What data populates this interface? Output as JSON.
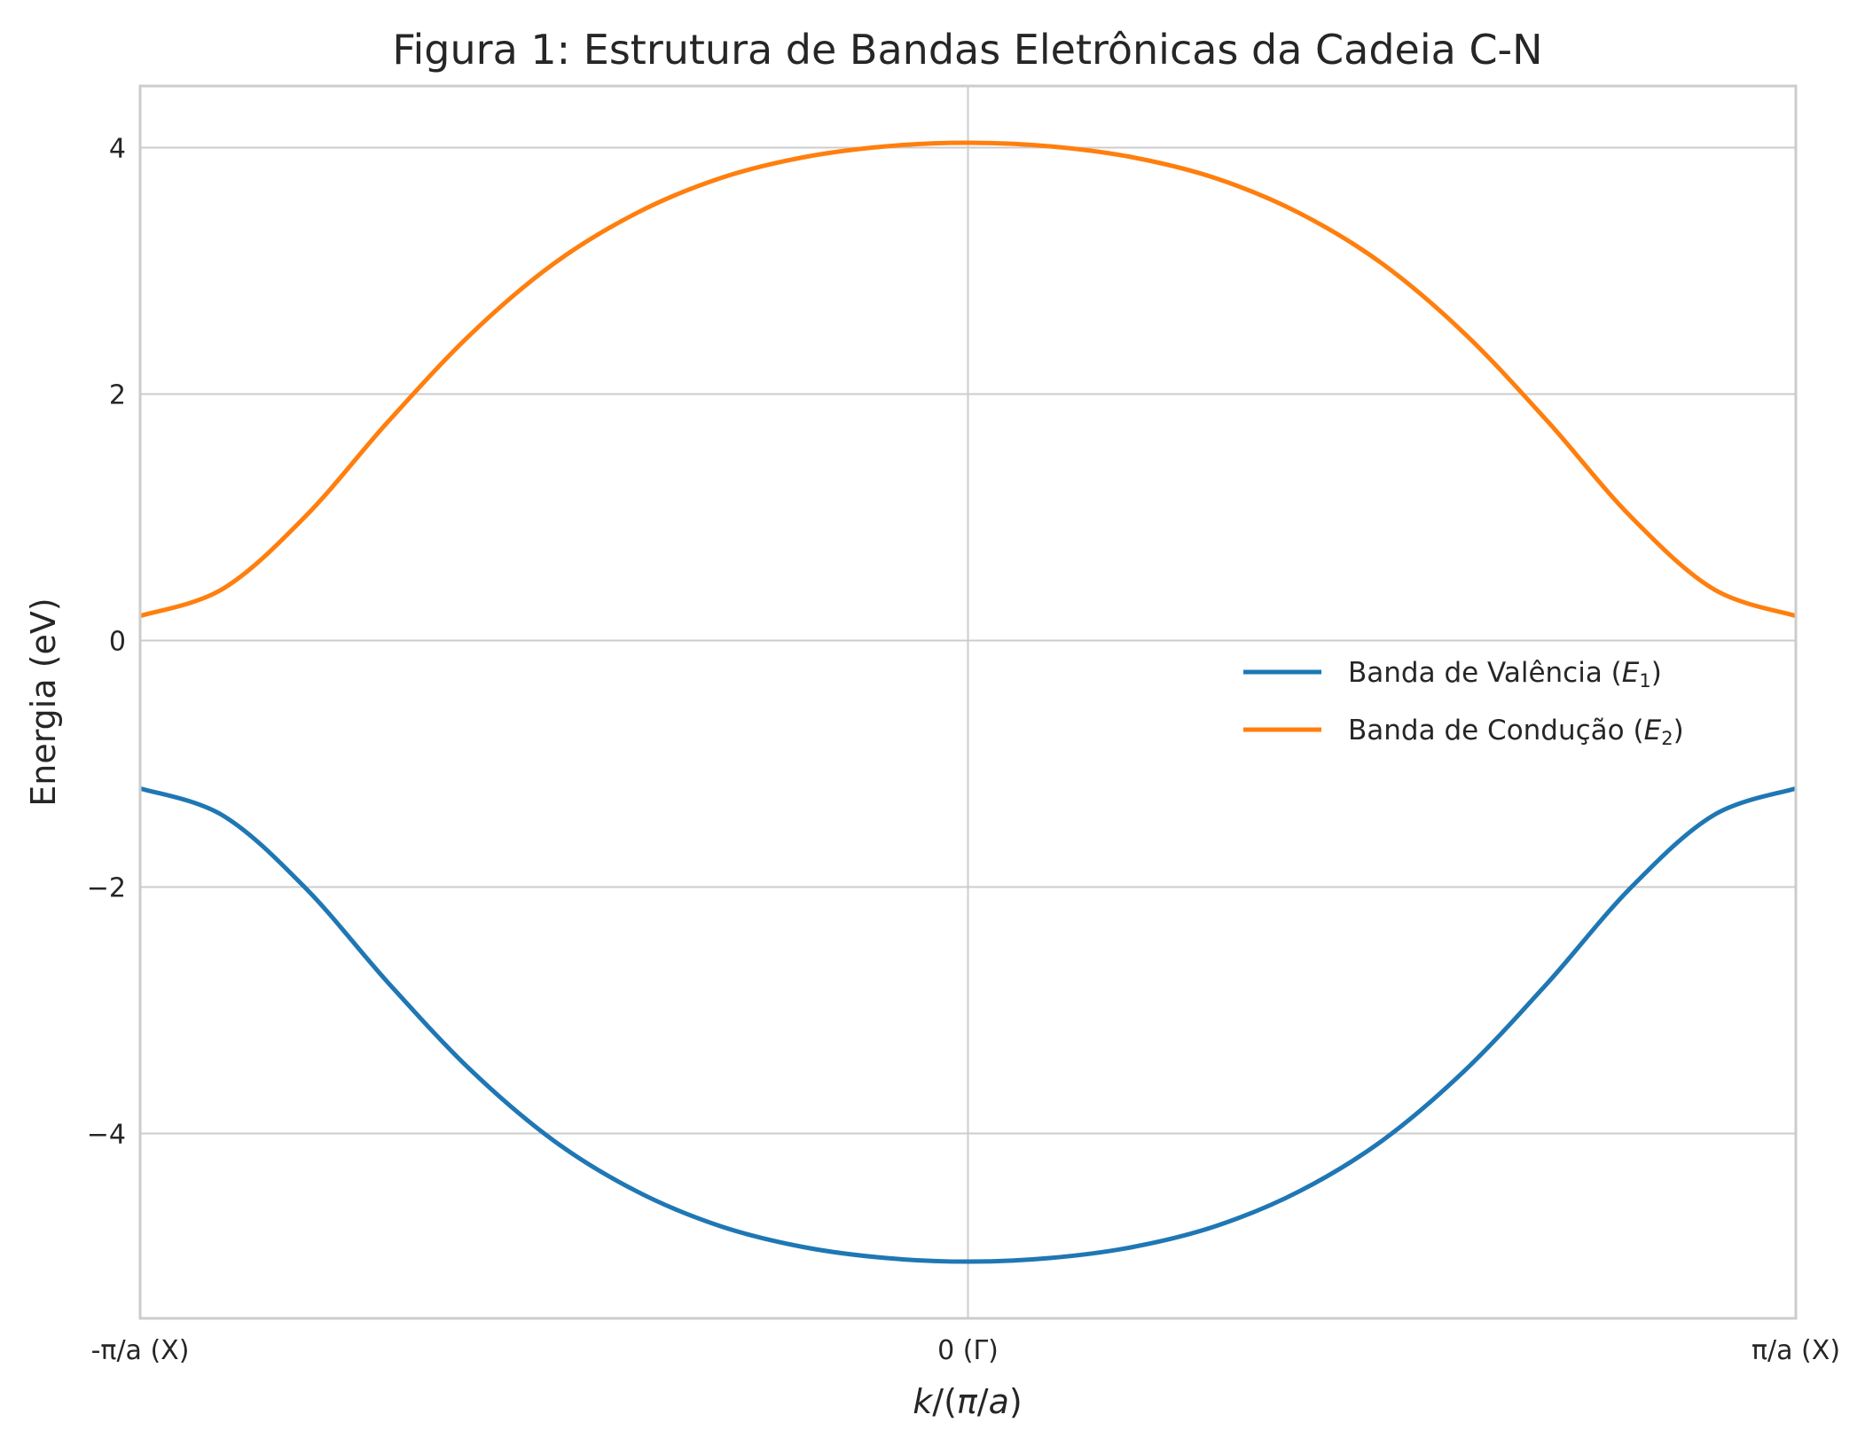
{
  "chart_data": {
    "type": "line",
    "title": "Figura 1: Estrutura de Bandas Eletrônicas da Cadeia C-N",
    "xlabel_parts": [
      "k",
      "/(",
      "π",
      "/",
      "a",
      ")"
    ],
    "ylabel": "Energia (eV)",
    "xlim": [
      -1,
      1
    ],
    "ylim": [
      -5.5,
      4.5
    ],
    "xticks": [
      {
        "value": -1,
        "label": "-π/a (X)"
      },
      {
        "value": 0,
        "label": "0 (Γ)"
      },
      {
        "value": 1,
        "label": "π/a (X)"
      }
    ],
    "yticks": [
      {
        "value": -4,
        "label": "−4"
      },
      {
        "value": -2,
        "label": "−2"
      },
      {
        "value": 0,
        "label": "0"
      },
      {
        "value": 2,
        "label": "2"
      },
      {
        "value": 4,
        "label": "4"
      }
    ],
    "grid": true,
    "legend_position": "center-right",
    "series": [
      {
        "name_prefix": "Banda de Valência (",
        "name_var": "E",
        "name_sub": "1",
        "name_suffix": ")",
        "color": "#1f77b4",
        "x": [
          -1,
          -0.9,
          -0.8,
          -0.7,
          -0.6,
          -0.5,
          -0.4,
          -0.3,
          -0.2,
          -0.1,
          0,
          0.1,
          0.2,
          0.3,
          0.4,
          0.5,
          0.6,
          0.7,
          0.8,
          0.9,
          1
        ],
        "y": [
          -1.2,
          -1.42,
          -2.01,
          -2.78,
          -3.49,
          -4.06,
          -4.47,
          -4.75,
          -4.92,
          -5.01,
          -5.04,
          -5.01,
          -4.92,
          -4.75,
          -4.47,
          -4.06,
          -3.49,
          -2.78,
          -2.01,
          -1.42,
          -1.2
        ]
      },
      {
        "name_prefix": "Banda de Condução (",
        "name_var": "E",
        "name_sub": "2",
        "name_suffix": ")",
        "color": "#ff7f0e",
        "x": [
          -1,
          -0.9,
          -0.8,
          -0.7,
          -0.6,
          -0.5,
          -0.4,
          -0.3,
          -0.2,
          -0.1,
          0,
          0.1,
          0.2,
          0.3,
          0.4,
          0.5,
          0.6,
          0.7,
          0.8,
          0.9,
          1
        ],
        "y": [
          0.2,
          0.42,
          1.01,
          1.78,
          2.49,
          3.06,
          3.47,
          3.75,
          3.92,
          4.01,
          4.04,
          4.01,
          3.92,
          3.75,
          3.47,
          3.06,
          2.49,
          1.78,
          1.01,
          0.42,
          0.2
        ]
      }
    ]
  }
}
